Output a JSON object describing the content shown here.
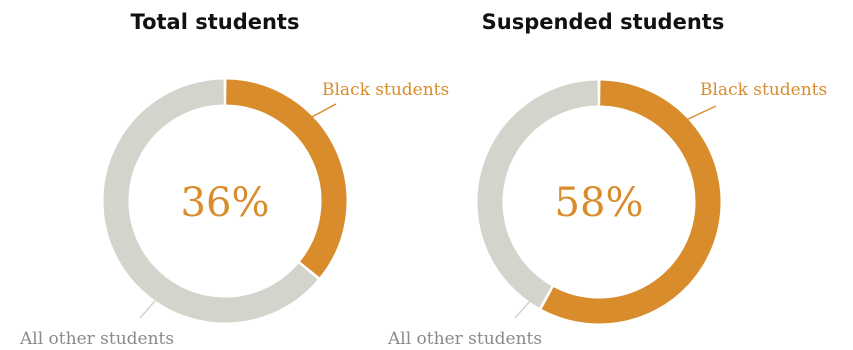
{
  "chart_data": [
    {
      "type": "pie",
      "title": "Total students",
      "center_label": "36%",
      "slices": [
        {
          "label": "Black students",
          "value": 36,
          "color": "#d98c2b"
        },
        {
          "label": "All other students",
          "value": 64,
          "color": "#d4d3cc"
        }
      ]
    },
    {
      "type": "pie",
      "title": "Suspended students",
      "center_label": "58%",
      "slices": [
        {
          "label": "Black students",
          "value": 58,
          "color": "#d98c2b"
        },
        {
          "label": "All other students",
          "value": 42,
          "color": "#d4d3cc"
        }
      ]
    }
  ]
}
